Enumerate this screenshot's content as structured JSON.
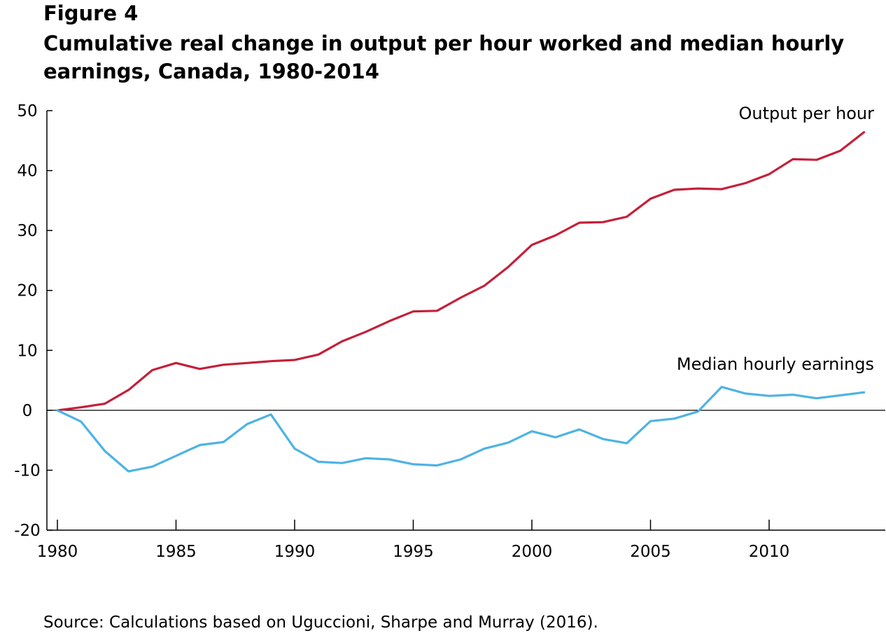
{
  "header": {
    "figure_label": "Figure 4",
    "title": "Cumulative real change in output per hour worked and median hourly earnings, Canada, 1980-2014"
  },
  "source": "Source: Calculations based on Uguccioni, Sharpe and Murray (2016).",
  "chart_data": {
    "type": "line",
    "title": "Cumulative real change in output per hour worked and median hourly earnings, Canada, 1980-2014",
    "xlabel": "",
    "ylabel": "",
    "xlim": [
      1980,
      2014
    ],
    "ylim": [
      -20,
      50
    ],
    "x_ticks": [
      1980,
      1985,
      1990,
      1995,
      2000,
      2005,
      2010
    ],
    "y_ticks": [
      50,
      40,
      30,
      20,
      10,
      0,
      -10,
      -20
    ],
    "x_tick_labels": [
      "1980",
      "1985",
      "1990",
      "1995",
      "2000",
      "2005",
      "2010"
    ],
    "y_tick_labels": [
      "50",
      "40",
      "30",
      "20",
      "10",
      "0",
      "-10",
      "-20"
    ],
    "zero_line": true,
    "grid": false,
    "x": [
      1980,
      1981,
      1982,
      1983,
      1984,
      1985,
      1986,
      1987,
      1988,
      1989,
      1990,
      1991,
      1992,
      1993,
      1994,
      1995,
      1996,
      1997,
      1998,
      1999,
      2000,
      2001,
      2002,
      2003,
      2004,
      2005,
      2006,
      2007,
      2008,
      2009,
      2010,
      2011,
      2012,
      2013,
      2014
    ],
    "series": [
      {
        "name": "Output per hour",
        "color": "#c4203a",
        "values": [
          0,
          0.5,
          1.1,
          3.4,
          6.7,
          7.9,
          6.9,
          7.6,
          7.9,
          8.2,
          8.4,
          9.3,
          11.5,
          13.1,
          14.9,
          16.5,
          16.6,
          18.8,
          20.8,
          23.9,
          27.6,
          29.2,
          31.3,
          31.4,
          32.3,
          35.3,
          36.8,
          37.0,
          36.9,
          37.9,
          39.4,
          41.9,
          41.8,
          43.3,
          46.4
        ]
      },
      {
        "name": "Median hourly earnings",
        "color": "#4db3e4",
        "values": [
          0,
          -1.9,
          -6.8,
          -10.2,
          -9.4,
          -7.6,
          -5.8,
          -5.3,
          -2.3,
          -0.7,
          -6.4,
          -8.6,
          -8.8,
          -8.0,
          -8.2,
          -9.0,
          -9.2,
          -8.2,
          -6.4,
          -5.4,
          -3.5,
          -4.5,
          -3.2,
          -4.8,
          -5.5,
          -1.8,
          -1.4,
          -0.2,
          3.9,
          2.8,
          2.4,
          2.6,
          2.0,
          2.5,
          3.0
        ]
      }
    ]
  }
}
